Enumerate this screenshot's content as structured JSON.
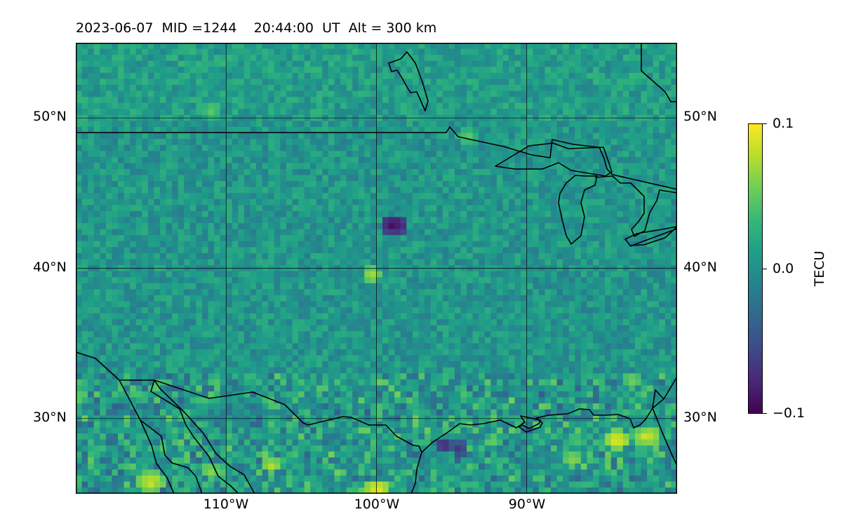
{
  "header": {
    "date": "2023-06-07",
    "mid": "MID =1244",
    "time": "20:44:00",
    "time_zone": "UT",
    "altitude": "Alt = 300 km"
  },
  "map": {
    "projection": "equirectangular",
    "lon_range": [
      -120,
      -80
    ],
    "lat_range": [
      25,
      55
    ],
    "gridlines": true,
    "lat_ticks": [
      {
        "value": 50,
        "label": "50°N"
      },
      {
        "value": 40,
        "label": "40°N"
      },
      {
        "value": 30,
        "label": "30°N"
      }
    ],
    "lon_ticks": [
      {
        "value": -110,
        "label": "110°W"
      },
      {
        "value": -100,
        "label": "100°W"
      },
      {
        "value": -90,
        "label": "90°W"
      }
    ],
    "field": "differential TEC (gridded)",
    "colormap": "viridis",
    "anomalies": [
      {
        "lon": -115,
        "lat": 25.8,
        "level": 0.09
      },
      {
        "lon": -111,
        "lat": 26.5,
        "level": 0.07
      },
      {
        "lon": -107,
        "lat": 26.9,
        "level": 0.08
      },
      {
        "lon": -100,
        "lat": 25.3,
        "level": 0.1
      },
      {
        "lon": -84,
        "lat": 28.6,
        "level": 0.1
      },
      {
        "lon": -82,
        "lat": 28.8,
        "level": 0.09
      },
      {
        "lon": -87,
        "lat": 27.3,
        "level": 0.07
      },
      {
        "lon": -83,
        "lat": 32.5,
        "level": 0.06
      },
      {
        "lon": -94,
        "lat": 48.8,
        "level": 0.05
      },
      {
        "lon": -111,
        "lat": 50.5,
        "level": 0.05
      },
      {
        "lon": -100.3,
        "lat": 39.6,
        "level": 0.08
      },
      {
        "lon": -98.8,
        "lat": 42.9,
        "level": -0.1
      },
      {
        "lon": -95.5,
        "lat": 28.2,
        "level": -0.08
      },
      {
        "lon": -94.5,
        "lat": 28.0,
        "level": -0.07
      }
    ]
  },
  "colorbar": {
    "label": "TECU",
    "min": -0.1,
    "max": 0.1,
    "ticks": [
      {
        "value": 0.1,
        "label": "0.1"
      },
      {
        "value": 0.0,
        "label": "0.0"
      },
      {
        "value": -0.1,
        "label": "−0.1"
      }
    ]
  },
  "colors": {
    "viridis_low": "#440154",
    "viridis_mid": "#21908d",
    "viridis_high": "#fde725",
    "coastline": "#000000",
    "gridline": "#000000"
  }
}
